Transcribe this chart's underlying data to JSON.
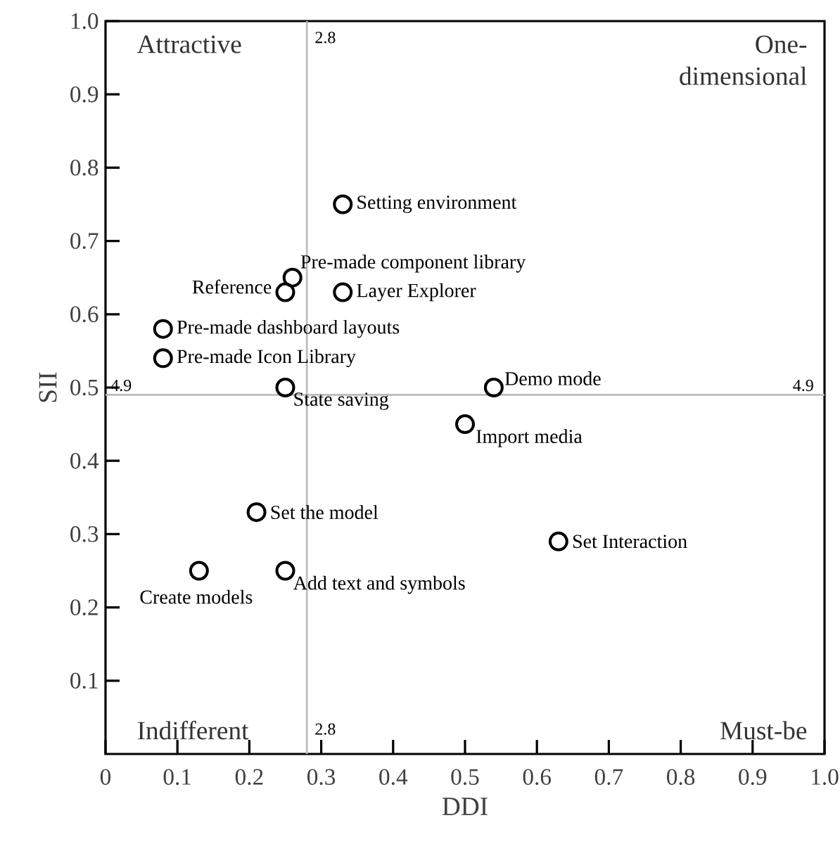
{
  "chart_data": {
    "type": "scatter",
    "xlabel": "DDI",
    "ylabel": "SII",
    "x": [
      0.33,
      0.26,
      0.25,
      0.33,
      0.08,
      0.08,
      0.25,
      0.54,
      0.5,
      0.21,
      0.63,
      0.13,
      0.25
    ],
    "values": [
      0.75,
      0.65,
      0.63,
      0.63,
      0.58,
      0.54,
      0.5,
      0.5,
      0.45,
      0.33,
      0.29,
      0.25,
      0.25
    ],
    "color": "#000000",
    "marker": "circle",
    "xlim": [
      0,
      1
    ],
    "ylim": [
      0,
      1
    ],
    "xticks": [
      0,
      0.1,
      0.2,
      0.3,
      0.4,
      0.5,
      0.6,
      0.7,
      0.8,
      0.9,
      {
        "value": 1,
        "label": "1.0"
      }
    ],
    "yticks": [
      0.1,
      0.2,
      0.3,
      0.4,
      0.5,
      0.6,
      0.7,
      0.8,
      0.9,
      {
        "value": 1,
        "label": "1.0"
      }
    ],
    "grid": false,
    "ref_lines": [
      {
        "axis": "x",
        "value": 0.28,
        "color": "#bbbbbb"
      },
      {
        "axis": "y",
        "value": 0.49,
        "color": "#bbbbbb"
      }
    ],
    "annotations": [
      "Attractive",
      "One-dimensional",
      "Indifferent",
      "Must-be",
      {
        "text": "2.8",
        "x": 0.28,
        "y": 1
      },
      {
        "text": "2.8",
        "x": 0.28,
        "y": 0
      },
      {
        "text": "4.9",
        "x": 0,
        "y": 0.49
      },
      {
        "text": "4.9",
        "x": 1,
        "y": 0.49
      },
      {
        "text": "Setting environment",
        "x": 0.33,
        "y": 0.75
      },
      {
        "text": "Pre-made component library",
        "x": 0.26,
        "y": 0.65
      },
      {
        "text": "Reference",
        "x": 0.25,
        "y": 0.63
      },
      {
        "text": "Layer Explorer",
        "x": 0.33,
        "y": 0.63
      },
      {
        "text": "Pre-made dashboard layouts",
        "x": 0.08,
        "y": 0.58
      },
      {
        "text": "Pre-made Icon Library",
        "x": 0.08,
        "y": 0.54
      },
      {
        "text": "State saving",
        "x": 0.25,
        "y": 0.5
      },
      {
        "text": "Demo mode",
        "x": 0.54,
        "y": 0.5
      },
      {
        "text": "Import media",
        "x": 0.5,
        "y": 0.45
      },
      {
        "text": "Set the model",
        "x": 0.21,
        "y": 0.33
      },
      {
        "text": "Set Interaction",
        "x": 0.63,
        "y": 0.29
      },
      {
        "text": "Create models",
        "x": 0.13,
        "y": 0.25
      },
      {
        "text": "Add text and symbols",
        "x": 0.25,
        "y": 0.25
      }
    ]
  }
}
